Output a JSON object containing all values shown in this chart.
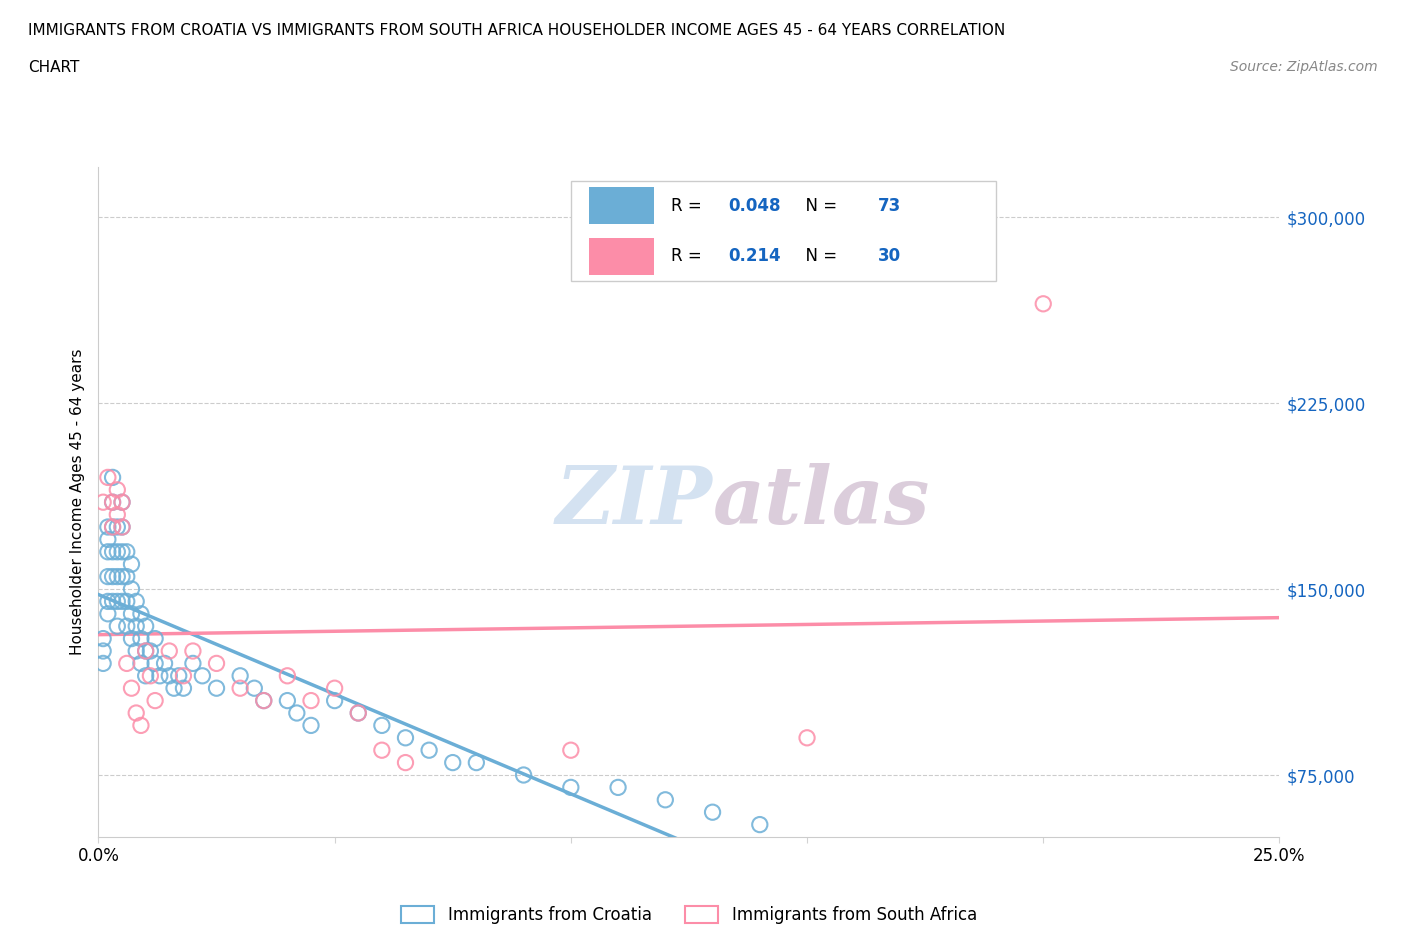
{
  "title_line1": "IMMIGRANTS FROM CROATIA VS IMMIGRANTS FROM SOUTH AFRICA HOUSEHOLDER INCOME AGES 45 - 64 YEARS CORRELATION",
  "title_line2": "CHART",
  "source_text": "Source: ZipAtlas.com",
  "ylabel": "Householder Income Ages 45 - 64 years",
  "xlim": [
    0.0,
    0.25
  ],
  "ylim": [
    50000,
    320000
  ],
  "yticks": [
    75000,
    150000,
    225000,
    300000
  ],
  "ytick_labels": [
    "$75,000",
    "$150,000",
    "$225,000",
    "$300,000"
  ],
  "xticks": [
    0.0,
    0.05,
    0.1,
    0.15,
    0.2,
    0.25
  ],
  "xtick_labels": [
    "0.0%",
    "",
    "",
    "",
    "",
    "25.0%"
  ],
  "croatia_color": "#6baed6",
  "south_africa_color": "#fc8da8",
  "croatia_R": 0.048,
  "croatia_N": 73,
  "south_africa_R": 0.214,
  "south_africa_N": 30,
  "watermark_zip": "ZIP",
  "watermark_atlas": "atlas",
  "legend_label_1": "Immigrants from Croatia",
  "legend_label_2": "Immigrants from South Africa",
  "croatia_x": [
    0.001,
    0.001,
    0.001,
    0.002,
    0.002,
    0.002,
    0.002,
    0.002,
    0.002,
    0.003,
    0.003,
    0.003,
    0.003,
    0.003,
    0.003,
    0.004,
    0.004,
    0.004,
    0.004,
    0.004,
    0.005,
    0.005,
    0.005,
    0.005,
    0.005,
    0.006,
    0.006,
    0.006,
    0.006,
    0.007,
    0.007,
    0.007,
    0.007,
    0.008,
    0.008,
    0.008,
    0.009,
    0.009,
    0.009,
    0.01,
    0.01,
    0.01,
    0.011,
    0.012,
    0.012,
    0.013,
    0.014,
    0.015,
    0.016,
    0.017,
    0.018,
    0.02,
    0.022,
    0.025,
    0.03,
    0.033,
    0.035,
    0.04,
    0.042,
    0.045,
    0.05,
    0.055,
    0.06,
    0.065,
    0.07,
    0.075,
    0.08,
    0.09,
    0.1,
    0.11,
    0.12,
    0.13,
    0.14
  ],
  "croatia_y": [
    125000,
    130000,
    120000,
    165000,
    175000,
    170000,
    155000,
    145000,
    140000,
    195000,
    185000,
    175000,
    165000,
    155000,
    145000,
    175000,
    165000,
    155000,
    145000,
    135000,
    185000,
    175000,
    165000,
    155000,
    145000,
    165000,
    155000,
    145000,
    135000,
    160000,
    150000,
    140000,
    130000,
    145000,
    135000,
    125000,
    140000,
    130000,
    120000,
    135000,
    125000,
    115000,
    125000,
    130000,
    120000,
    115000,
    120000,
    115000,
    110000,
    115000,
    110000,
    120000,
    115000,
    110000,
    115000,
    110000,
    105000,
    105000,
    100000,
    95000,
    105000,
    100000,
    95000,
    90000,
    85000,
    80000,
    80000,
    75000,
    70000,
    70000,
    65000,
    60000,
    55000
  ],
  "sa_x": [
    0.001,
    0.002,
    0.003,
    0.003,
    0.004,
    0.004,
    0.005,
    0.005,
    0.006,
    0.007,
    0.008,
    0.009,
    0.01,
    0.011,
    0.012,
    0.015,
    0.018,
    0.02,
    0.025,
    0.03,
    0.035,
    0.04,
    0.045,
    0.05,
    0.055,
    0.06,
    0.065,
    0.1,
    0.15,
    0.2
  ],
  "sa_y": [
    185000,
    195000,
    185000,
    175000,
    190000,
    180000,
    185000,
    175000,
    120000,
    110000,
    100000,
    95000,
    125000,
    115000,
    105000,
    125000,
    115000,
    125000,
    120000,
    110000,
    105000,
    115000,
    105000,
    110000,
    100000,
    85000,
    80000,
    85000,
    90000,
    265000
  ]
}
